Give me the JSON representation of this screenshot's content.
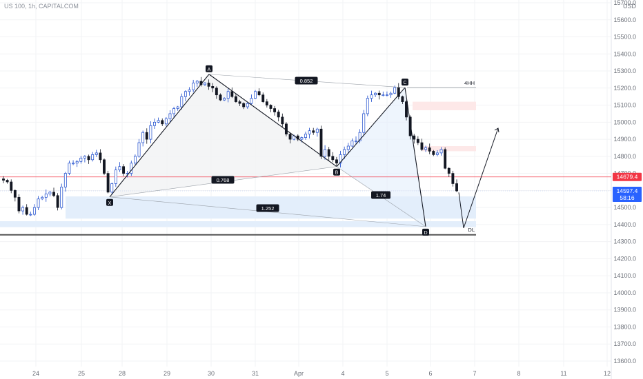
{
  "header": {
    "symbol_line": "US 100, 1h, CAPITALCOM"
  },
  "chart_data": {
    "type": "candlestick",
    "currency": "USD",
    "y_ticks": [
      15700,
      15600,
      15500,
      15400,
      15300,
      15200,
      15100,
      15000,
      14900,
      14800,
      14700,
      14600,
      14500,
      14400,
      14300,
      14200,
      14100,
      14000,
      13900,
      13800,
      13700,
      13600
    ],
    "y_tick_labels": [
      "15700.0",
      "15600.0",
      "15500.0",
      "15400.0",
      "15300.0",
      "15200.0",
      "15100.0",
      "15000.0",
      "14900.0",
      "14800.0",
      "14700.0",
      "14600.0",
      "14500.0",
      "14400.0",
      "14300.0",
      "14200.0",
      "14100.0",
      "14000.0",
      "13900.0",
      "13800.0",
      "13700.0",
      "13600.0"
    ],
    "x_tick_labels": [
      "24",
      "25",
      "28",
      "29",
      "30",
      "31",
      "Apr",
      "4",
      "5",
      "6",
      "7",
      "8",
      "11",
      "12"
    ],
    "price_markers": {
      "red_line": {
        "value": 14679.4,
        "label": "14679.4",
        "color": "#f23645"
      },
      "current": {
        "value": 14597.4,
        "label": "14597.4",
        "countdown": "58:16",
        "color": "#2962ff"
      }
    },
    "pattern_points": [
      {
        "label": "X",
        "price": 14562
      },
      {
        "label": "A",
        "price": 15281
      },
      {
        "label": "B",
        "price": 14740
      },
      {
        "label": "C",
        "price": 15203
      },
      {
        "label": "D",
        "price": 14388
      }
    ],
    "ratios": [
      {
        "label": "0.852"
      },
      {
        "label": "0.768"
      },
      {
        "label": "1.74"
      },
      {
        "label": "1.252"
      }
    ],
    "levels": [
      {
        "label": "4HH",
        "price": 15203
      },
      {
        "label": "DL",
        "price": 14340
      }
    ],
    "zones": [
      {
        "name": "resistance-zone-1",
        "from": 15070,
        "to": 15120,
        "color": "#fde8e8"
      },
      {
        "name": "resistance-zone-2",
        "from": 14830,
        "to": 14860,
        "color": "#fde8e8"
      },
      {
        "name": "demand-zone-1",
        "from": 14435,
        "to": 14565,
        "color": "#e3eefb"
      },
      {
        "name": "demand-zone-2",
        "from": 14385,
        "to": 14420,
        "color": "#e3eefb"
      }
    ],
    "projection": [
      14588,
      14380,
      14965
    ],
    "candle_closes": [
      14660,
      14650,
      14600,
      14560,
      14480,
      14500,
      14460,
      14460,
      14500,
      14550,
      14560,
      14580,
      14590,
      14570,
      14500,
      14620,
      14700,
      14760,
      14760,
      14770,
      14790,
      14800,
      14780,
      14810,
      14820,
      14780,
      14700,
      14590,
      14640,
      14720,
      14740,
      14700,
      14700,
      14760,
      14800,
      14880,
      14940,
      14900,
      14980,
      15000,
      15010,
      14990,
      15020,
      15050,
      15080,
      15090,
      15150,
      15180,
      15190,
      15230,
      15240,
      15220,
      15230,
      15210,
      15200,
      15160,
      15130,
      15140,
      15180,
      15150,
      15120,
      15110,
      15090,
      15110,
      15140,
      15180,
      15160,
      15120,
      15100,
      15080,
      15060,
      15030,
      14990,
      14930,
      14900,
      14920,
      14900,
      14910,
      14930,
      14950,
      14940,
      14960,
      14800,
      14840,
      14800,
      14780,
      14760,
      14810,
      14840,
      14860,
      14890,
      14890,
      14940,
      15050,
      15140,
      15160,
      15170,
      15160,
      15160,
      15160,
      15170,
      15203,
      15150,
      15120,
      15030,
      14920,
      14900,
      14880,
      14840,
      14850,
      14830,
      14810,
      14820,
      14840,
      14730,
      14700,
      14640,
      14597.4
    ],
    "colors": {
      "up": "#1848cc",
      "down": "#131722",
      "grid": "#f2f3f5",
      "pattern_fill": "#f1f2f4"
    }
  }
}
